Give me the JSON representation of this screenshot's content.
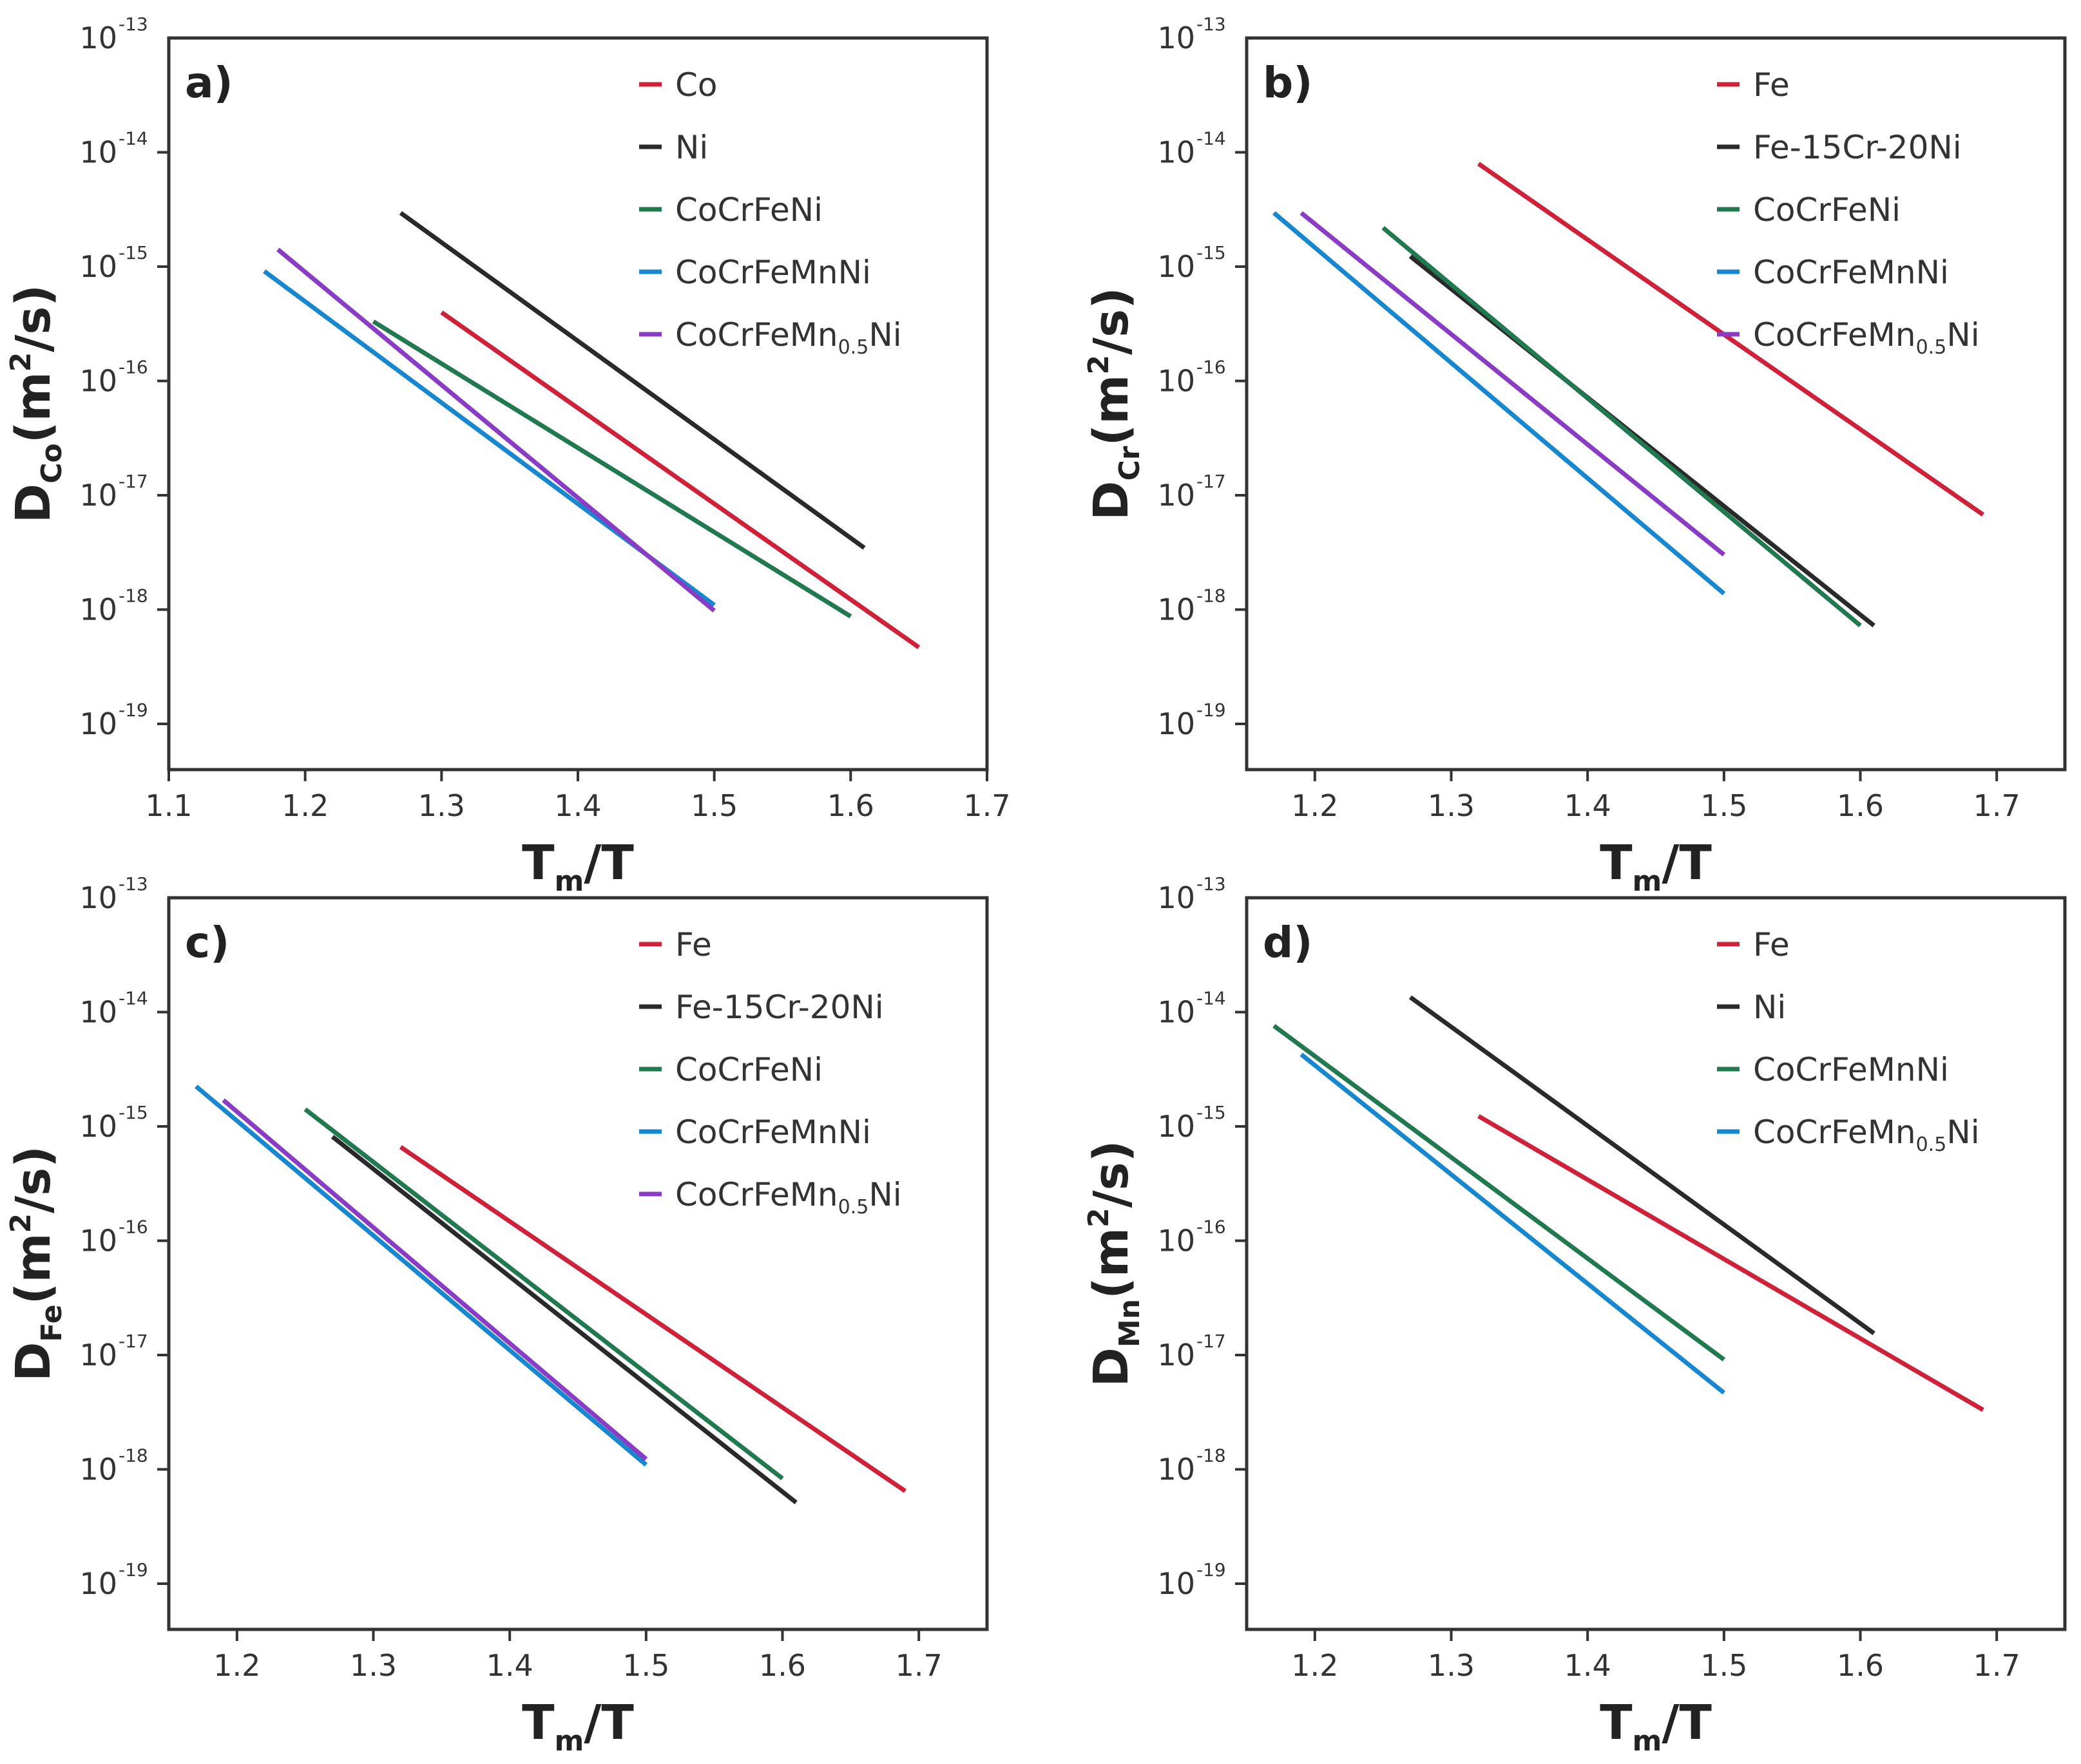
{
  "colors": {
    "red": "#d0213a",
    "black": "#2a2a2a",
    "green": "#217a4f",
    "blue": "#1787cf",
    "purple": "#8a3cc4",
    "frame": "#333333"
  },
  "chart_data": [
    {
      "type": "line",
      "panel_label": "a)",
      "ylabel": {
        "main": "D",
        "sub": "Co",
        "rest": "(m",
        "sup": "2",
        "end": "/s)"
      },
      "xlabel": {
        "main": "T",
        "sub": "m",
        "end": "/T"
      },
      "xlim": [
        1.1,
        1.7
      ],
      "ylim_exp": [
        -19.4,
        -13
      ],
      "y_scale": "log",
      "xticks": [
        "1.1",
        "1.2",
        "1.3",
        "1.4",
        "1.5",
        "1.6",
        "1.7"
      ],
      "yticks": [
        {
          "base": "10",
          "exp": "-19"
        },
        {
          "base": "10",
          "exp": "-18"
        },
        {
          "base": "10",
          "exp": "-17"
        },
        {
          "base": "10",
          "exp": "-16"
        },
        {
          "base": "10",
          "exp": "-15"
        },
        {
          "base": "10",
          "exp": "-14"
        },
        {
          "base": "10",
          "exp": "-13"
        }
      ],
      "series": [
        {
          "name": "Co",
          "color": "red",
          "x": [
            1.3,
            1.65
          ],
          "y_exp": [
            -15.4,
            -18.33
          ]
        },
        {
          "name": "Ni",
          "color": "black",
          "x": [
            1.27,
            1.61
          ],
          "y_exp": [
            -14.53,
            -17.46
          ]
        },
        {
          "name": "CoCrFeNi",
          "color": "green",
          "x": [
            1.25,
            1.6
          ],
          "y_exp": [
            -15.48,
            -18.06
          ]
        },
        {
          "name": "CoCrFeMnNi",
          "color": "blue",
          "x": [
            1.17,
            1.5
          ],
          "y_exp": [
            -15.04,
            -17.96
          ]
        },
        {
          "name": "CoCrFeMn",
          "name_sub": "0.5",
          "name_end": "Ni",
          "color": "purple",
          "x": [
            1.18,
            1.5
          ],
          "y_exp": [
            -14.85,
            -18.01
          ]
        }
      ]
    },
    {
      "type": "line",
      "panel_label": "b)",
      "ylabel": {
        "main": "D",
        "sub": "Cr",
        "rest": "(m",
        "sup": "2",
        "end": "/s)"
      },
      "xlabel": {
        "main": "T",
        "sub": "m",
        "end": "/T"
      },
      "xlim": [
        1.15,
        1.75
      ],
      "ylim_exp": [
        -19.4,
        -13
      ],
      "y_scale": "log",
      "xticks": [
        "1.2",
        "1.3",
        "1.4",
        "1.5",
        "1.6",
        "1.7"
      ],
      "yticks": [
        {
          "base": "10",
          "exp": "-19"
        },
        {
          "base": "10",
          "exp": "-18"
        },
        {
          "base": "10",
          "exp": "-17"
        },
        {
          "base": "10",
          "exp": "-16"
        },
        {
          "base": "10",
          "exp": "-15"
        },
        {
          "base": "10",
          "exp": "-14"
        },
        {
          "base": "10",
          "exp": "-13"
        }
      ],
      "series": [
        {
          "name": "Fe",
          "color": "red",
          "x": [
            1.32,
            1.69
          ],
          "y_exp": [
            -14.1,
            -17.17
          ]
        },
        {
          "name": "Fe-15Cr-20Ni",
          "color": "black",
          "x": [
            1.27,
            1.61
          ],
          "y_exp": [
            -14.91,
            -18.14
          ]
        },
        {
          "name": "CoCrFeNi",
          "color": "green",
          "x": [
            1.25,
            1.6
          ],
          "y_exp": [
            -14.66,
            -18.14
          ]
        },
        {
          "name": "CoCrFeMnNi",
          "color": "blue",
          "x": [
            1.17,
            1.5
          ],
          "y_exp": [
            -14.53,
            -17.86
          ]
        },
        {
          "name": "CoCrFeMn",
          "name_sub": "0.5",
          "name_end": "Ni",
          "color": "purple",
          "x": [
            1.19,
            1.5
          ],
          "y_exp": [
            -14.53,
            -17.52
          ]
        }
      ]
    },
    {
      "type": "line",
      "panel_label": "c)",
      "ylabel": {
        "main": "D",
        "sub": "Fe",
        "rest": "(m",
        "sup": "2",
        "end": "/s)"
      },
      "xlabel": {
        "main": "T",
        "sub": "m",
        "end": "/T"
      },
      "xlim": [
        1.15,
        1.75
      ],
      "ylim_exp": [
        -19.4,
        -13
      ],
      "y_scale": "log",
      "xticks": [
        "1.2",
        "1.3",
        "1.4",
        "1.5",
        "1.6",
        "1.7"
      ],
      "yticks": [
        {
          "base": "10",
          "exp": "-19"
        },
        {
          "base": "10",
          "exp": "-18"
        },
        {
          "base": "10",
          "exp": "-17"
        },
        {
          "base": "10",
          "exp": "-16"
        },
        {
          "base": "10",
          "exp": "-15"
        },
        {
          "base": "10",
          "exp": "-14"
        },
        {
          "base": "10",
          "exp": "-13"
        }
      ],
      "series": [
        {
          "name": "Fe",
          "color": "red",
          "x": [
            1.32,
            1.69
          ],
          "y_exp": [
            -15.18,
            -18.19
          ]
        },
        {
          "name": "Fe-15Cr-20Ni",
          "color": "black",
          "x": [
            1.27,
            1.61
          ],
          "y_exp": [
            -15.09,
            -18.29
          ]
        },
        {
          "name": "CoCrFeNi",
          "color": "green",
          "x": [
            1.25,
            1.6
          ],
          "y_exp": [
            -14.85,
            -18.08
          ]
        },
        {
          "name": "CoCrFeMnNi",
          "color": "blue",
          "x": [
            1.17,
            1.5
          ],
          "y_exp": [
            -14.65,
            -17.96
          ]
        },
        {
          "name": "CoCrFeMn",
          "name_sub": "0.5",
          "name_end": "Ni",
          "color": "purple",
          "x": [
            1.19,
            1.5
          ],
          "y_exp": [
            -14.77,
            -17.91
          ]
        }
      ]
    },
    {
      "type": "line",
      "panel_label": "d)",
      "ylabel": {
        "main": "D",
        "sub": "Mn",
        "rest": "(m",
        "sup": "2",
        "end": "/s)"
      },
      "xlabel": {
        "main": "T",
        "sub": "m",
        "end": "/T"
      },
      "xlim": [
        1.15,
        1.75
      ],
      "ylim_exp": [
        -19.4,
        -13
      ],
      "y_scale": "log",
      "xticks": [
        "1.2",
        "1.3",
        "1.4",
        "1.5",
        "1.6",
        "1.7"
      ],
      "yticks": [
        {
          "base": "10",
          "exp": "-19"
        },
        {
          "base": "10",
          "exp": "-18"
        },
        {
          "base": "10",
          "exp": "-17"
        },
        {
          "base": "10",
          "exp": "-16"
        },
        {
          "base": "10",
          "exp": "-15"
        },
        {
          "base": "10",
          "exp": "-14"
        },
        {
          "base": "10",
          "exp": "-13"
        }
      ],
      "series": [
        {
          "name": "Fe",
          "color": "red",
          "x": [
            1.32,
            1.69
          ],
          "y_exp": [
            -14.91,
            -17.48
          ]
        },
        {
          "name": "Ni",
          "color": "black",
          "x": [
            1.27,
            1.61
          ],
          "y_exp": [
            -13.87,
            -16.81
          ]
        },
        {
          "name": "CoCrFeMnNi",
          "color": "green",
          "x": [
            1.17,
            1.5
          ],
          "y_exp": [
            -14.12,
            -17.04
          ]
        },
        {
          "name": "CoCrFeMn",
          "name_sub": "0.5",
          "name_end": "Ni",
          "color": "blue",
          "x": [
            1.19,
            1.5
          ],
          "y_exp": [
            -14.37,
            -17.33
          ]
        }
      ]
    }
  ]
}
